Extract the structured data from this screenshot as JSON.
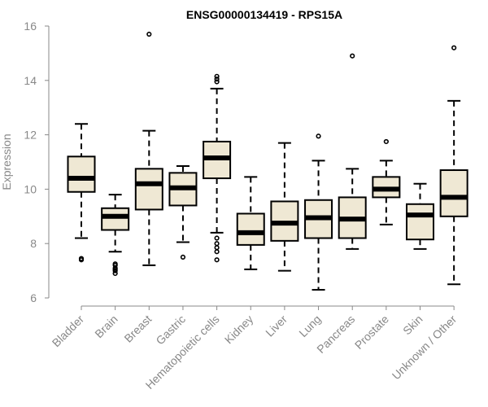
{
  "chart_data": {
    "type": "box",
    "title": "ENSG00000134419 - RPS15A",
    "xlabel": "",
    "ylabel": "Expression",
    "ylim": [
      6,
      16
    ],
    "yticks": [
      6,
      8,
      10,
      12,
      14,
      16
    ],
    "grid": false,
    "categories": [
      "Bladder",
      "Brain",
      "Breast",
      "Gastric",
      "Hematopoietic cells",
      "Kidney",
      "Liver",
      "Lung",
      "Pancreas",
      "Prostate",
      "Skin",
      "Unknown / Other"
    ],
    "boxes": [
      {
        "category": "Bladder",
        "whisker_low": 8.2,
        "q1": 9.9,
        "median": 10.4,
        "q3": 11.2,
        "whisker_high": 12.4,
        "outliers": [
          7.4,
          7.45
        ]
      },
      {
        "category": "Brain",
        "whisker_low": 7.7,
        "q1": 8.5,
        "median": 9.0,
        "q3": 9.3,
        "whisker_high": 9.8,
        "outliers": [
          6.9,
          7.0,
          7.05,
          7.1,
          7.2,
          7.25
        ]
      },
      {
        "category": "Breast",
        "whisker_low": 7.2,
        "q1": 9.25,
        "median": 10.2,
        "q3": 10.75,
        "whisker_high": 12.15,
        "outliers": [
          15.7
        ]
      },
      {
        "category": "Gastric",
        "whisker_low": 8.05,
        "q1": 9.4,
        "median": 10.05,
        "q3": 10.6,
        "whisker_high": 10.85,
        "outliers": [
          7.5
        ]
      },
      {
        "category": "Hematopoietic cells",
        "whisker_low": 8.4,
        "q1": 10.4,
        "median": 11.15,
        "q3": 11.75,
        "whisker_high": 13.7,
        "outliers": [
          7.4,
          7.7,
          7.85,
          8.0,
          8.2,
          13.95,
          14.05,
          14.15
        ]
      },
      {
        "category": "Kidney",
        "whisker_low": 7.05,
        "q1": 7.95,
        "median": 8.4,
        "q3": 9.1,
        "whisker_high": 10.45,
        "outliers": []
      },
      {
        "category": "Liver",
        "whisker_low": 7.0,
        "q1": 8.1,
        "median": 8.75,
        "q3": 9.55,
        "whisker_high": 11.7,
        "outliers": []
      },
      {
        "category": "Lung",
        "whisker_low": 6.3,
        "q1": 8.2,
        "median": 8.95,
        "q3": 9.6,
        "whisker_high": 11.05,
        "outliers": [
          11.95
        ]
      },
      {
        "category": "Pancreas",
        "whisker_low": 7.8,
        "q1": 8.2,
        "median": 8.9,
        "q3": 9.7,
        "whisker_high": 10.75,
        "outliers": [
          14.9
        ]
      },
      {
        "category": "Prostate",
        "whisker_low": 8.7,
        "q1": 9.7,
        "median": 10.0,
        "q3": 10.45,
        "whisker_high": 11.05,
        "outliers": [
          11.75
        ]
      },
      {
        "category": "Skin",
        "whisker_low": 7.8,
        "q1": 8.15,
        "median": 9.05,
        "q3": 9.45,
        "whisker_high": 10.2,
        "outliers": []
      },
      {
        "category": "Unknown / Other",
        "whisker_low": 6.5,
        "q1": 9.0,
        "median": 9.7,
        "q3": 10.7,
        "whisker_high": 13.25,
        "outliers": [
          15.2
        ]
      }
    ],
    "box_fill": "#efe8d4",
    "stroke_color": "#000000",
    "axis_color": "#888888"
  }
}
